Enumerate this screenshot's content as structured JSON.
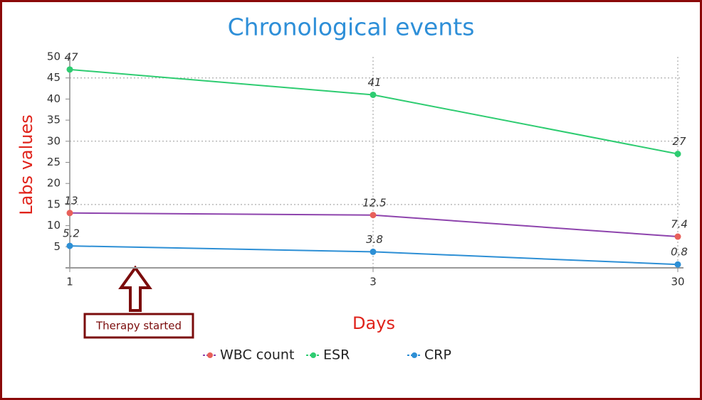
{
  "chart_data": {
    "type": "line",
    "title": "Chronological events",
    "xlabel": "Days",
    "ylabel": "Labs values",
    "categories": [
      "1",
      "3",
      "30"
    ],
    "series": [
      {
        "name": "WBC count",
        "color": "#8e44ad",
        "marker_color": "#e8605a",
        "values": [
          13,
          12.5,
          7.4
        ]
      },
      {
        "name": "ESR",
        "color": "#2ecc71",
        "marker_color": "#2ecc71",
        "values": [
          47,
          41,
          27
        ]
      },
      {
        "name": "CRP",
        "color": "#2d8fd5",
        "marker_color": "#2d8fd5",
        "values": [
          5.2,
          3.8,
          0.8
        ]
      }
    ],
    "ylim": [
      0,
      50
    ],
    "yticks": [
      5,
      10,
      15,
      20,
      25,
      30,
      35,
      40,
      45,
      50
    ],
    "grid": true,
    "annotation": "Therapy started"
  }
}
